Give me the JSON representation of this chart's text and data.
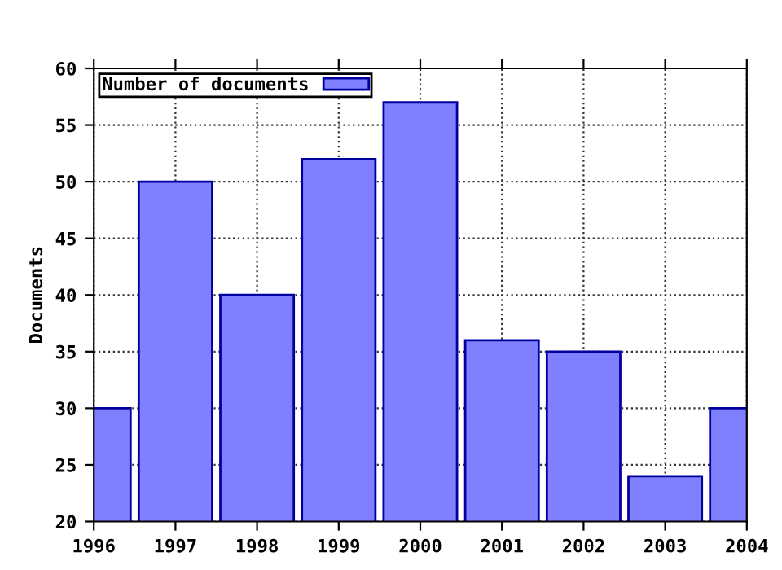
{
  "chart_data": {
    "type": "bar",
    "ylabel": "Documents",
    "x": [
      1996,
      1997,
      1998,
      1999,
      2000,
      2001,
      2002,
      2003,
      2004
    ],
    "series": [
      {
        "name": "Number of documents",
        "color": "#8080ff",
        "values": [
          30,
          50,
          40,
          52,
          57,
          36,
          35,
          24,
          30
        ]
      }
    ],
    "xlim": [
      1996,
      2004
    ],
    "xticks": [
      1996,
      1997,
      1998,
      1999,
      2000,
      2001,
      2002,
      2003,
      2004
    ],
    "ylim": [
      20,
      60
    ],
    "yticks": [
      20,
      25,
      30,
      35,
      40,
      45,
      50,
      55,
      60
    ],
    "grid": true,
    "line_style": "dotted",
    "legend": "top left"
  }
}
